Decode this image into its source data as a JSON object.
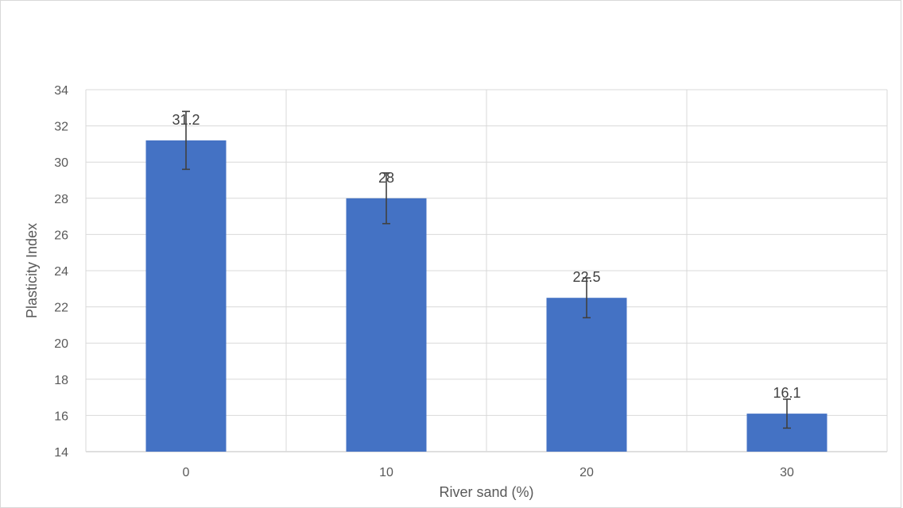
{
  "chart_data": {
    "type": "bar",
    "title": "",
    "xlabel": "River sand (%)",
    "ylabel": "Plasticity Index",
    "categories": [
      "0",
      "10",
      "20",
      "30"
    ],
    "values": [
      31.2,
      28,
      22.5,
      16.1
    ],
    "error": [
      1.6,
      1.4,
      1.1,
      0.8
    ],
    "data_labels": [
      "31.2",
      "28",
      "22.5",
      "16.1"
    ],
    "ylim": [
      14,
      34
    ],
    "yticks": [
      14,
      16,
      18,
      20,
      22,
      24,
      26,
      28,
      30,
      32,
      34
    ],
    "grid": true,
    "legend": "none",
    "colors": {
      "bar": "#4472c4",
      "grid": "#d9d9d9",
      "error_bar": "#404040",
      "axis": "#bfbfbf"
    }
  }
}
